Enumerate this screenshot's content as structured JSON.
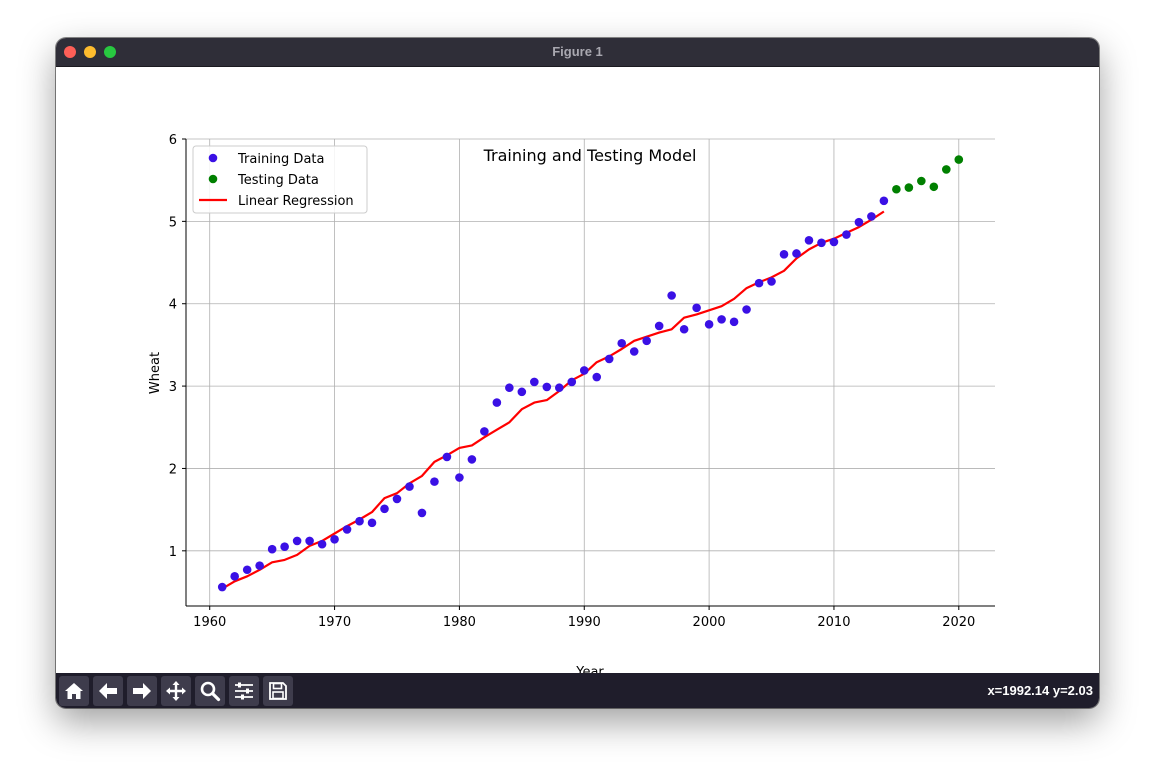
{
  "window": {
    "title": "Figure 1",
    "coords_readout": "x=1992.14 y=2.03",
    "traffic_colors": [
      "#fe5f57",
      "#febc2e",
      "#28c840"
    ]
  },
  "toolbar": {
    "buttons": [
      "home-icon",
      "back-arrow-icon",
      "forward-arrow-icon",
      "pan-icon",
      "zoom-icon",
      "configure-subplots-icon",
      "save-icon"
    ]
  },
  "chart_data": {
    "type": "scatter",
    "title": "Training and Testing Model",
    "xlabel": "Year",
    "ylabel": "Wheat",
    "xlim": [
      1958.1,
      2022.9
    ],
    "ylim": [
      0.33,
      6.0
    ],
    "xticks": [
      1960,
      1970,
      1980,
      1990,
      2000,
      2010,
      2020
    ],
    "yticks": [
      1,
      2,
      3,
      4,
      5,
      6
    ],
    "grid": true,
    "legend_position": "upper-left",
    "series": [
      {
        "name": "Training Data",
        "kind": "scatter",
        "color": "#3a10e5",
        "x": [
          1961,
          1962,
          1963,
          1964,
          1965,
          1966,
          1967,
          1968,
          1969,
          1970,
          1971,
          1972,
          1973,
          1974,
          1975,
          1976,
          1977,
          1978,
          1979,
          1980,
          1981,
          1982,
          1983,
          1984,
          1985,
          1986,
          1987,
          1988,
          1989,
          1990,
          1991,
          1992,
          1993,
          1994,
          1995,
          1996,
          1997,
          1998,
          1999,
          2000,
          2001,
          2002,
          2003,
          2004,
          2005,
          2006,
          2007,
          2008,
          2009,
          2010,
          2011,
          2012,
          2013,
          2014
        ],
        "y": [
          0.56,
          0.69,
          0.77,
          0.82,
          1.02,
          1.05,
          1.12,
          1.12,
          1.08,
          1.14,
          1.26,
          1.36,
          1.34,
          1.51,
          1.63,
          1.78,
          1.46,
          1.84,
          2.14,
          1.89,
          2.11,
          2.45,
          2.8,
          2.98,
          2.93,
          3.05,
          2.99,
          2.98,
          3.05,
          3.19,
          3.11,
          3.33,
          3.52,
          3.42,
          3.55,
          3.73,
          4.1,
          3.69,
          3.95,
          3.75,
          3.81,
          3.78,
          3.93,
          4.25,
          4.27,
          4.6,
          4.61,
          4.77,
          4.74,
          4.75,
          4.84,
          4.99,
          5.06,
          5.25
        ]
      },
      {
        "name": "Testing Data",
        "kind": "scatter",
        "color": "#008000",
        "x": [
          2015,
          2016,
          2017,
          2018,
          2019,
          2020
        ],
        "y": [
          5.39,
          5.41,
          5.49,
          5.42,
          5.63,
          5.75
        ]
      },
      {
        "name": "Linear Regression",
        "kind": "line",
        "color": "#ff0000",
        "x": [
          1961,
          1962,
          1963,
          1964,
          1965,
          1966,
          1967,
          1968,
          1969,
          1970,
          1971,
          1972,
          1973,
          1974,
          1975,
          1976,
          1977,
          1978,
          1979,
          1980,
          1981,
          1982,
          1983,
          1984,
          1985,
          1986,
          1987,
          1988,
          1989,
          1990,
          1991,
          1992,
          1993,
          1994,
          1995,
          1996,
          1997,
          1998,
          1999,
          2000,
          2001,
          2002,
          2003,
          2004,
          2005,
          2006,
          2007,
          2008,
          2009,
          2010,
          2011,
          2012,
          2013,
          2014
        ],
        "y": [
          0.54,
          0.63,
          0.69,
          0.77,
          0.86,
          0.89,
          0.95,
          1.06,
          1.12,
          1.21,
          1.3,
          1.38,
          1.47,
          1.64,
          1.7,
          1.82,
          1.91,
          2.08,
          2.16,
          2.25,
          2.28,
          2.38,
          2.47,
          2.56,
          2.72,
          2.8,
          2.83,
          2.94,
          3.07,
          3.15,
          3.29,
          3.36,
          3.45,
          3.55,
          3.6,
          3.65,
          3.69,
          3.83,
          3.87,
          3.92,
          3.97,
          4.06,
          4.19,
          4.26,
          4.32,
          4.4,
          4.55,
          4.66,
          4.74,
          4.79,
          4.86,
          4.93,
          5.02,
          5.12
        ]
      }
    ]
  }
}
